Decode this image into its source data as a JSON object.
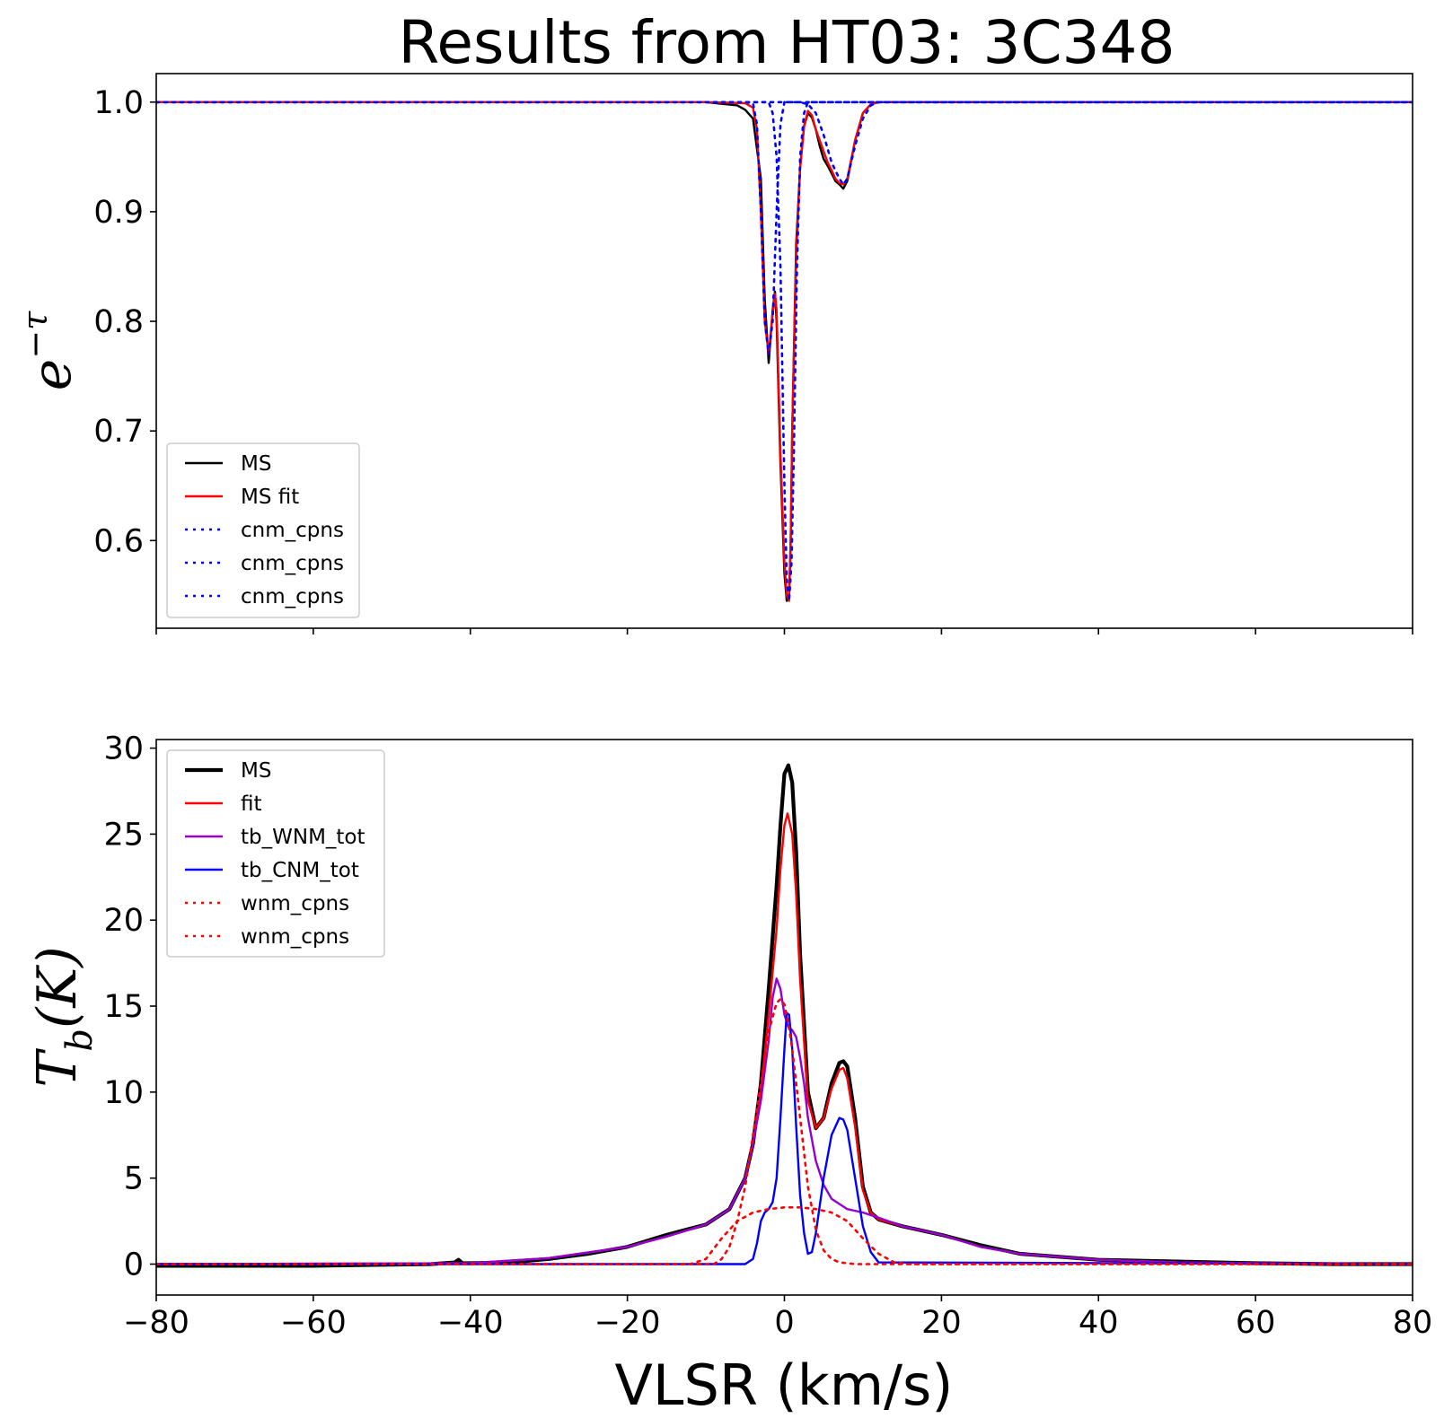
{
  "title": "Results from HT03: 3C348",
  "chart_data": [
    {
      "type": "line",
      "xlim": [
        -80,
        80
      ],
      "ylim": [
        0.52,
        1.026
      ],
      "xticks": [
        -80,
        -60,
        -40,
        -20,
        0,
        20,
        40,
        60,
        80
      ],
      "xtick_labels_visible": false,
      "yticks": [
        0.6,
        0.7,
        0.8,
        0.9,
        1.0
      ],
      "ytick_labels": [
        "0.6",
        "0.7",
        "0.8",
        "0.9",
        "1.0"
      ],
      "ylabel_base": "e",
      "ylabel_sup": "−τ",
      "legend": {
        "location": "lower left",
        "entries": [
          "MS",
          "MS fit",
          "cnm_cpns",
          "cnm_cpns",
          "cnm_cpns"
        ]
      },
      "series": [
        {
          "name": "MS",
          "color": "#000000",
          "style": "solid",
          "x": [
            -80,
            -30,
            -10,
            -6,
            -5,
            -4,
            -3,
            -2.5,
            -2,
            -1.5,
            -1.2,
            -1,
            -0.5,
            0,
            0.3,
            0.6,
            0.8,
            1,
            1.5,
            2,
            2.5,
            3,
            3.5,
            4,
            4.5,
            5,
            5.5,
            6,
            6.5,
            7,
            7.5,
            8,
            9,
            10,
            11,
            12,
            15,
            40,
            80
          ],
          "y": [
            1.0,
            1.0,
            1.0,
            0.997,
            0.993,
            0.985,
            0.93,
            0.82,
            0.762,
            0.81,
            0.827,
            0.8,
            0.67,
            0.57,
            0.545,
            0.55,
            0.6,
            0.7,
            0.87,
            0.94,
            0.978,
            0.99,
            0.986,
            0.975,
            0.96,
            0.948,
            0.942,
            0.935,
            0.928,
            0.925,
            0.921,
            0.928,
            0.965,
            0.99,
            0.998,
            1.0,
            1.0,
            1.0,
            1.0
          ]
        },
        {
          "name": "MS fit",
          "color": "#ff0000",
          "style": "solid",
          "x": [
            -80,
            -10,
            -5,
            -4,
            -3.5,
            -3,
            -2.5,
            -2,
            -1.6,
            -1.2,
            -1,
            -0.5,
            0,
            0.3,
            0.6,
            0.8,
            1,
            1.5,
            2,
            2.5,
            3,
            3.5,
            4,
            5,
            5.5,
            6,
            6.5,
            7,
            7.5,
            8,
            9,
            10,
            11,
            12,
            15,
            80
          ],
          "y": [
            1.0,
            1.0,
            0.999,
            0.995,
            0.975,
            0.9,
            0.8,
            0.77,
            0.8,
            0.825,
            0.81,
            0.68,
            0.58,
            0.55,
            0.545,
            0.6,
            0.7,
            0.86,
            0.94,
            0.978,
            0.992,
            0.988,
            0.975,
            0.955,
            0.945,
            0.938,
            0.93,
            0.926,
            0.925,
            0.93,
            0.965,
            0.99,
            0.998,
            1.0,
            1.0,
            1.0
          ]
        },
        {
          "name": "cnm_cpns",
          "color": "#0000ff",
          "style": "dotted",
          "x": [
            -80,
            -5,
            -4,
            -3.5,
            -3,
            -2.5,
            -2,
            -1.5,
            -1,
            -0.5,
            0,
            80
          ],
          "y": [
            1.0,
            1.0,
            0.999,
            0.98,
            0.9,
            0.8,
            0.77,
            0.8,
            0.9,
            0.98,
            1.0,
            1.0
          ]
        },
        {
          "name": "cnm_cpns",
          "color": "#0000ff",
          "style": "dotted",
          "x": [
            -80,
            -2,
            -1.5,
            -1,
            -0.5,
            0,
            0.3,
            0.6,
            0.9,
            1.2,
            1.6,
            2,
            2.5,
            3,
            80
          ],
          "y": [
            1.0,
            1.0,
            0.99,
            0.95,
            0.85,
            0.65,
            0.565,
            0.545,
            0.58,
            0.68,
            0.85,
            0.95,
            0.99,
            1.0,
            1.0
          ]
        },
        {
          "name": "cnm_cpns",
          "color": "#0000ff",
          "style": "dotted",
          "x": [
            -80,
            2,
            3,
            4,
            5,
            6,
            7,
            7.5,
            8,
            9,
            10,
            11,
            12,
            80
          ],
          "y": [
            1.0,
            1.0,
            0.998,
            0.99,
            0.97,
            0.945,
            0.93,
            0.925,
            0.93,
            0.96,
            0.985,
            0.997,
            1.0,
            1.0
          ]
        }
      ]
    },
    {
      "type": "line",
      "xlim": [
        -80,
        80
      ],
      "ylim": [
        -1.8,
        30.5
      ],
      "xticks": [
        -80,
        -60,
        -40,
        -20,
        0,
        20,
        40,
        60,
        80
      ],
      "xtick_labels": [
        "−80",
        "−60",
        "−40",
        "−20",
        "0",
        "20",
        "40",
        "60",
        "80"
      ],
      "yticks": [
        0,
        5,
        10,
        15,
        20,
        25,
        30
      ],
      "ytick_labels": [
        "0",
        "5",
        "10",
        "15",
        "20",
        "25",
        "30"
      ],
      "xlabel": "VLSR (km/s)",
      "ylabel_base": "T",
      "ylabel_sub": "b",
      "ylabel_rest": "(K)",
      "legend": {
        "location": "upper left",
        "entries": [
          "MS",
          "fit",
          "tb_WNM_tot",
          "tb_CNM_tot",
          "wnm_cpns",
          "wnm_cpns"
        ]
      },
      "series": [
        {
          "name": "MS",
          "color": "#000000",
          "style": "solid-thick",
          "x": [
            -80,
            -60,
            -45,
            -42,
            -41.5,
            -41,
            -40,
            -35,
            -30,
            -25,
            -20,
            -15,
            -10,
            -7,
            -5,
            -4,
            -3,
            -2,
            -1,
            -0.5,
            0,
            0.5,
            1,
            1.5,
            2,
            3,
            4,
            5,
            6,
            7,
            7.5,
            8,
            9,
            10,
            11,
            12,
            15,
            20,
            25,
            30,
            40,
            50,
            60,
            70,
            80
          ],
          "y": [
            -0.1,
            -0.1,
            0.0,
            0.1,
            0.25,
            0.05,
            0.05,
            0.1,
            0.3,
            0.6,
            1.0,
            1.7,
            2.3,
            3.2,
            5.0,
            7.0,
            10.5,
            16.0,
            22.0,
            25.5,
            28.5,
            29.0,
            28.0,
            24.0,
            18.0,
            10.0,
            7.9,
            8.5,
            10.5,
            11.7,
            11.8,
            11.5,
            8.5,
            4.5,
            3.0,
            2.6,
            2.2,
            1.7,
            1.1,
            0.6,
            0.25,
            0.15,
            0.05,
            0.0,
            0.0
          ]
        },
        {
          "name": "fit",
          "color": "#ff0000",
          "style": "solid",
          "x": [
            -80,
            -40,
            -30,
            -20,
            -15,
            -10,
            -7,
            -5,
            -4,
            -3,
            -2,
            -1,
            -0.5,
            0,
            0.4,
            1,
            1.5,
            2,
            3,
            4,
            5,
            6,
            7,
            7.5,
            8,
            9,
            10,
            11,
            12,
            15,
            20,
            25,
            30,
            40,
            50,
            60,
            80
          ],
          "y": [
            0.0,
            0.05,
            0.35,
            1.0,
            1.6,
            2.3,
            3.2,
            5.0,
            7.0,
            10.0,
            14.5,
            19.5,
            23.0,
            25.5,
            26.2,
            25.0,
            21.5,
            16.5,
            9.5,
            7.9,
            8.5,
            10.2,
            11.3,
            11.4,
            10.8,
            8.0,
            4.3,
            3.0,
            2.6,
            2.2,
            1.7,
            1.0,
            0.6,
            0.25,
            0.1,
            0.05,
            0.0
          ]
        },
        {
          "name": "tb_WNM_tot",
          "color": "#9400d3",
          "style": "solid",
          "x": [
            -80,
            -40,
            -30,
            -20,
            -15,
            -10,
            -7,
            -5,
            -4,
            -3,
            -2,
            -1.5,
            -1,
            -0.5,
            0,
            0.5,
            1,
            1.5,
            2,
            2.5,
            3,
            4,
            5,
            6,
            8,
            10,
            12,
            15,
            20,
            25,
            30,
            40,
            50,
            60,
            80
          ],
          "y": [
            0.0,
            0.05,
            0.35,
            1.0,
            1.6,
            2.3,
            3.2,
            5.0,
            7.0,
            9.5,
            13.0,
            15.5,
            16.6,
            16.0,
            14.5,
            13.8,
            13.6,
            13.2,
            12.0,
            10.5,
            8.5,
            6.0,
            4.6,
            3.8,
            3.2,
            3.0,
            2.7,
            2.2,
            1.7,
            1.0,
            0.6,
            0.25,
            0.1,
            0.05,
            0.0
          ]
        },
        {
          "name": "tb_CNM_tot",
          "color": "#0000ff",
          "style": "solid",
          "x": [
            -80,
            -5,
            -4,
            -3.5,
            -3,
            -2.5,
            -2,
            -1.5,
            -1,
            -0.5,
            0,
            0.3,
            0.6,
            1,
            1.5,
            2,
            2.5,
            3,
            3.5,
            4,
            5,
            6,
            7,
            7.5,
            8,
            9,
            10,
            11,
            12,
            80
          ],
          "y": [
            0.0,
            0.0,
            0.3,
            1.2,
            2.5,
            3.0,
            3.2,
            3.6,
            5.0,
            8.5,
            12.5,
            14.6,
            14.5,
            12.5,
            8.0,
            4.0,
            1.8,
            0.6,
            0.7,
            1.8,
            5.0,
            7.5,
            8.5,
            8.4,
            7.8,
            5.0,
            2.2,
            0.7,
            0.1,
            0.0
          ]
        },
        {
          "name": "wnm_cpns",
          "color": "#ff0000",
          "style": "dotted",
          "x": [
            -80,
            -9,
            -8,
            -7,
            -6,
            -5,
            -4,
            -3,
            -2,
            -1,
            -0.5,
            0,
            0.5,
            1,
            2,
            3,
            4,
            5,
            6,
            7,
            8,
            9,
            10,
            80
          ],
          "y": [
            0.0,
            0.0,
            0.3,
            1.0,
            2.5,
            4.5,
            7.5,
            10.5,
            13.5,
            15.2,
            15.4,
            15.1,
            14.0,
            12.5,
            8.5,
            4.5,
            2.0,
            0.8,
            0.3,
            0.1,
            0.05,
            0.0,
            0.0,
            0.0
          ]
        },
        {
          "name": "wnm_cpns",
          "color": "#ff0000",
          "style": "dotted",
          "x": [
            -80,
            -12,
            -10,
            -8,
            -6,
            -4,
            -2,
            0,
            2,
            4,
            6,
            8,
            10,
            12,
            14,
            16,
            80
          ],
          "y": [
            0.0,
            0.0,
            0.3,
            1.5,
            2.5,
            3.0,
            3.2,
            3.3,
            3.3,
            3.2,
            3.0,
            2.5,
            1.5,
            0.6,
            0.1,
            0.0,
            0.0
          ]
        }
      ]
    }
  ]
}
